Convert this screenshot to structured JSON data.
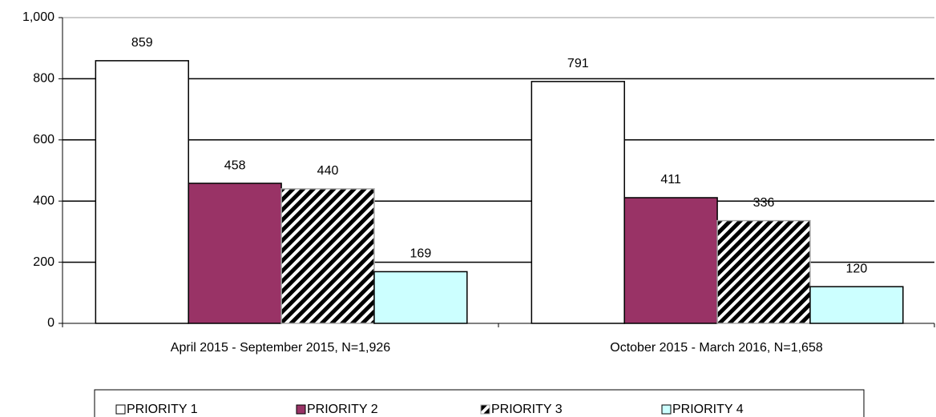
{
  "chart_data": {
    "type": "bar",
    "categories": [
      "April 2015 - September 2015, N=1,926",
      "October 2015 - March 2016, N=1,658"
    ],
    "series": [
      {
        "name": "PRIORITY 1",
        "color": "#ffffff",
        "values": [
          859,
          791
        ]
      },
      {
        "name": "PRIORITY 2",
        "color": "#993366",
        "values": [
          458,
          411
        ]
      },
      {
        "name": "PRIORITY 3",
        "color": "#000000",
        "pattern": "hatch",
        "values": [
          440,
          336
        ]
      },
      {
        "name": "PRIORITY 4",
        "color": "#ccffff",
        "values": [
          169,
          120
        ]
      }
    ],
    "ylim": [
      0,
      1000
    ],
    "yticks": [
      0,
      200,
      400,
      600,
      800,
      {
        "value": 1000,
        "label": "1,000"
      }
    ],
    "grid": true,
    "legend": "bottom"
  }
}
